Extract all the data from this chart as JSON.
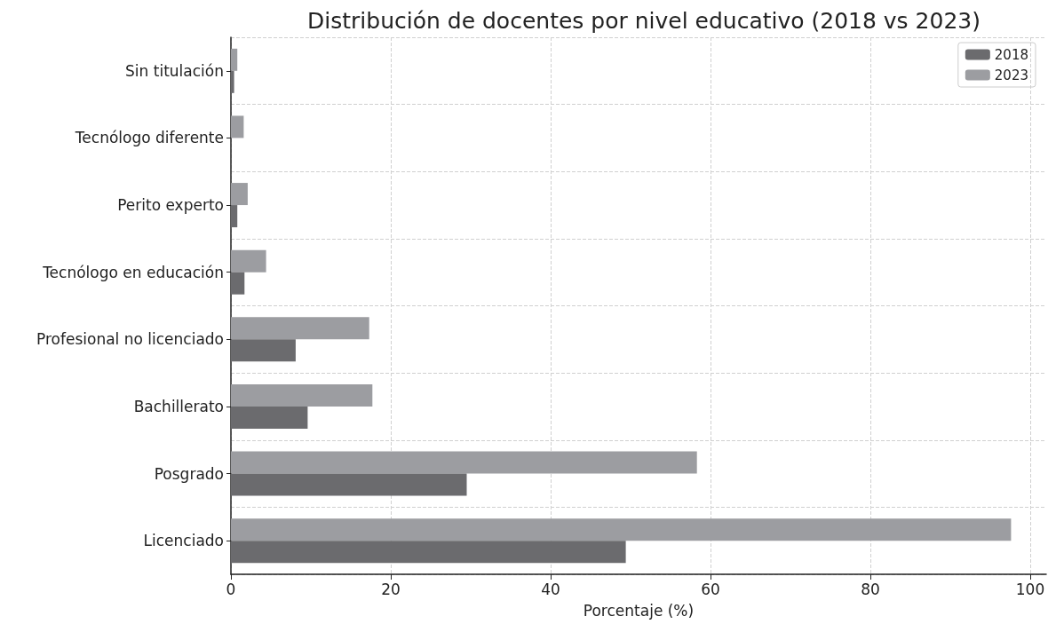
{
  "chart_data": {
    "type": "bar",
    "orientation": "horizontal",
    "title": "Distribución de docentes por nivel educativo (2018 vs 2023)",
    "xlabel": "Porcentaje (%)",
    "categories": [
      "Sin titulación",
      "Tecnólogo diferente",
      "Perito experto",
      "Tecnólogo en educación",
      "Profesional no licenciado",
      "Bachillerato",
      "Posgrado",
      "Licenciado"
    ],
    "series": [
      {
        "name": "2018",
        "color": "#6b6b6e",
        "values": [
          0.4,
          0,
          0.8,
          1.7,
          8.1,
          9.6,
          29.5,
          49.4
        ]
      },
      {
        "name": "2023",
        "color": "#9c9da1",
        "values": [
          0.8,
          1.6,
          2.1,
          4.4,
          17.3,
          17.7,
          58.3,
          97.6
        ]
      }
    ],
    "xlim": [
      0,
      102
    ],
    "xticks": [
      0,
      20,
      40,
      60,
      80,
      100
    ],
    "grid": true,
    "legend": "top right"
  }
}
